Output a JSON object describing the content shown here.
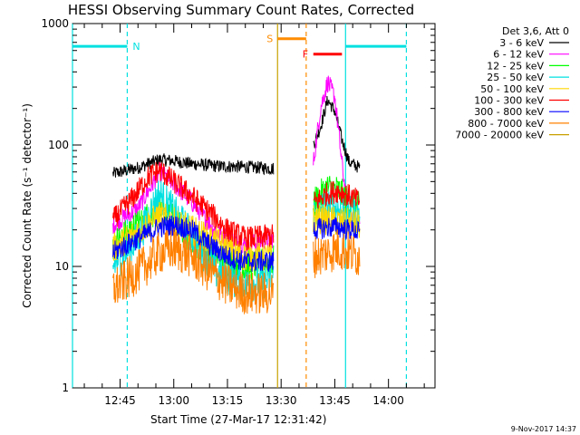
{
  "chart_data": {
    "type": "line",
    "title": "HESSI Observing Summary Count Rates, Corrected",
    "xlabel": "Start Time (27-Mar-17 12:31:42)",
    "ylabel": "Corrected Count Rate (s⁻¹ detector⁻¹)",
    "y_scale": "log",
    "ylim": [
      1,
      1000
    ],
    "y_ticks": [
      1,
      10,
      100,
      1000
    ],
    "y_tick_labels": [
      "1",
      "10",
      "100",
      "1000"
    ],
    "xlim": [
      "12:31:42",
      "14:13:00"
    ],
    "x_ticks": [
      "12:45",
      "13:00",
      "13:15",
      "13:30",
      "13:45",
      "14:00"
    ],
    "legend_title": "Det 3,6, Att 0",
    "legend_position": "outside-right",
    "grid": false,
    "segments": [
      {
        "x_start": "12:43:00",
        "x_end": "13:28:00"
      },
      {
        "x_start": "13:39:00",
        "x_end": "13:52:00"
      }
    ],
    "series": [
      {
        "name": "3 - 6 keV",
        "color": "#000000",
        "x": [
          "12:43",
          "12:50",
          "12:56",
          "13:00",
          "13:05",
          "13:12",
          "13:20",
          "13:28",
          "13:39",
          "13:41",
          "13:43",
          "13:45",
          "13:47",
          "13:49",
          "13:52"
        ],
        "y": [
          58,
          65,
          76,
          74,
          70,
          67,
          66,
          64,
          100,
          140,
          235,
          190,
          110,
          72,
          65
        ]
      },
      {
        "name": "6 - 12 keV",
        "color": "#ff00ff",
        "x": [
          "12:43",
          "12:50",
          "12:56",
          "13:00",
          "13:05",
          "13:12",
          "13:20",
          "13:28",
          "13:39",
          "13:41",
          "13:43",
          "13:45",
          "13:47",
          "13:49",
          "13:52"
        ],
        "y": [
          22,
          30,
          60,
          48,
          34,
          19,
          15,
          17,
          70,
          200,
          330,
          250,
          70,
          24,
          23
        ]
      },
      {
        "name": "12 - 25 keV",
        "color": "#00ff00",
        "x": [
          "12:43",
          "12:50",
          "12:56",
          "13:00",
          "13:05",
          "13:12",
          "13:20",
          "13:28",
          "13:39",
          "13:43",
          "13:46",
          "13:49",
          "13:52"
        ],
        "y": [
          15,
          22,
          30,
          24,
          17,
          12,
          10,
          11,
          33,
          44,
          42,
          33,
          30
        ]
      },
      {
        "name": "25 - 50 keV",
        "color": "#00e0e0",
        "x": [
          "12:43",
          "12:50",
          "12:56",
          "13:00",
          "13:05",
          "13:12",
          "13:20",
          "13:28",
          "13:39",
          "13:43",
          "13:46",
          "13:49",
          "13:52"
        ],
        "y": [
          10,
          17,
          40,
          28,
          18,
          9,
          7,
          8,
          27,
          32,
          30,
          27,
          25
        ]
      },
      {
        "name": "50 - 100 keV",
        "color": "#ffd700",
        "x": [
          "12:43",
          "12:56",
          "13:05",
          "13:20",
          "13:28",
          "13:39",
          "13:52"
        ],
        "y": [
          14,
          26,
          20,
          12,
          12,
          25,
          22
        ]
      },
      {
        "name": "100 - 300 keV",
        "color": "#ff0000",
        "x": [
          "12:43",
          "12:48",
          "12:53",
          "12:56",
          "13:00",
          "13:05",
          "13:10",
          "13:15",
          "13:20",
          "13:28",
          "13:39",
          "13:43",
          "13:46",
          "13:49",
          "13:52"
        ],
        "y": [
          24,
          35,
          55,
          62,
          50,
          38,
          28,
          20,
          17,
          18,
          33,
          40,
          42,
          38,
          34
        ]
      },
      {
        "name": "300 - 800 keV",
        "color": "#0000ff",
        "x": [
          "12:43",
          "12:50",
          "12:56",
          "13:00",
          "13:05",
          "13:10",
          "13:15",
          "13:20",
          "13:28",
          "13:39",
          "13:43",
          "13:46",
          "13:49",
          "13:52"
        ],
        "y": [
          13,
          17,
          21,
          22,
          20,
          15,
          12,
          11,
          11,
          20,
          21,
          21,
          20,
          19
        ]
      },
      {
        "name": "800 - 7000 keV",
        "color": "#ff8000",
        "x": [
          "12:43",
          "12:50",
          "12:56",
          "13:00",
          "13:05",
          "13:10",
          "13:15",
          "13:20",
          "13:28",
          "13:39",
          "13:43",
          "13:46",
          "13:49",
          "13:52"
        ],
        "y": [
          6.5,
          9,
          13,
          14,
          12,
          9,
          7,
          6,
          6,
          12,
          13,
          14,
          13,
          12
        ]
      },
      {
        "name": "7000 - 20000 keV",
        "color": "#c8a000",
        "x": [],
        "y": []
      }
    ],
    "annotations": [
      {
        "label": "N",
        "color": "#00e0e0",
        "x_line": "12:47:00",
        "line_style": "dashed",
        "bar_from": "12:31:42",
        "bar_to": "12:47:00",
        "bar_level": 650
      },
      {
        "label": "S",
        "color": "#ff8c00",
        "x_line": "13:37:00",
        "line_style": "dashed",
        "bar_from": "13:29:00",
        "bar_to": "13:37:00",
        "bar_level": 750
      },
      {
        "label": "F",
        "color": "#ff0000",
        "bar_from": "13:39:00",
        "bar_to": "13:47:00",
        "bar_level": 560
      }
    ],
    "vertical_lines": [
      {
        "x": "12:31:42",
        "color": "#00e0e0",
        "style": "solid"
      },
      {
        "x": "13:29:00",
        "color": "#c8a000",
        "style": "solid"
      },
      {
        "x": "13:48:00",
        "color": "#00e0e0",
        "style": "solid"
      },
      {
        "x": "14:05:00",
        "color": "#00e0e0",
        "style": "dashed"
      }
    ],
    "cyan_bar_right": {
      "from": "13:48:00",
      "to": "14:05:00",
      "level": 650
    }
  },
  "timestamp": "9-Nov-2017 14:37"
}
